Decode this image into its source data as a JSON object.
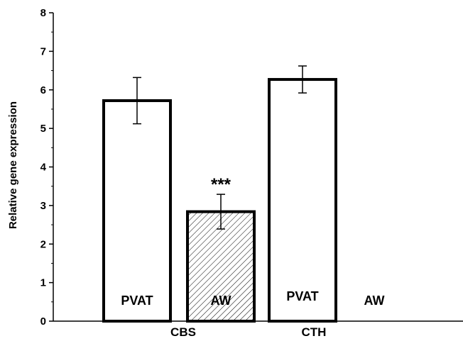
{
  "chart_data": {
    "type": "bar",
    "ylabel": "Relative gene expression",
    "ylim": [
      0,
      8
    ],
    "yticks": [
      "0",
      "1",
      "2",
      "3",
      "4",
      "5",
      "6",
      "7",
      "8"
    ],
    "categories": [
      "CBS",
      "CTH"
    ],
    "series": [
      {
        "name": "PVAT",
        "values": [
          5.72,
          6.27
        ],
        "errors": [
          0.6,
          0.35
        ],
        "fill": "white"
      },
      {
        "name": "AW",
        "values": [
          2.84,
          0
        ],
        "errors": [
          0.45,
          0
        ],
        "fill": "hatched"
      }
    ],
    "annotations": [
      {
        "text": "***",
        "category": "CBS",
        "series": "AW"
      }
    ],
    "grid": false
  }
}
